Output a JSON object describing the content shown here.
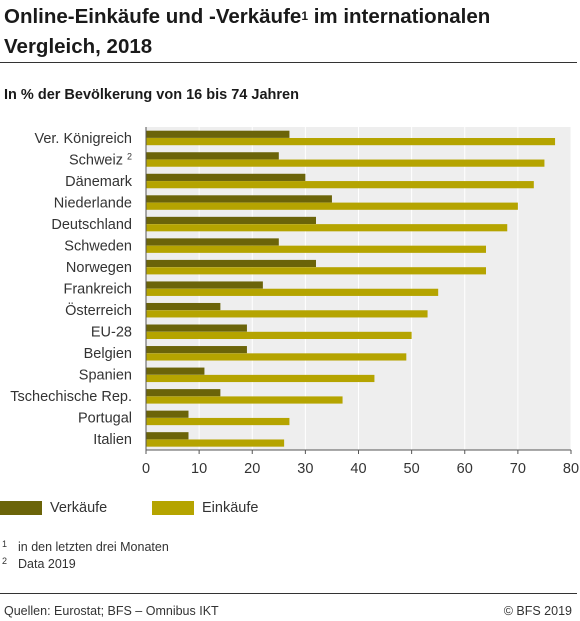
{
  "header": {
    "title_part1": "Online-Einkäufe und -Verkäufe",
    "title_sup": "1",
    "title_part2": " im internationalen Vergleich, 2018",
    "subtitle": "In % der Bevölkerung von 16 bis 74 Jahren"
  },
  "colors": {
    "verkaeufe": "#6b6409",
    "einkaeufe": "#b5a400",
    "plot_bg": "#eeeeee",
    "grid": "#ffffff"
  },
  "chart_data": {
    "type": "bar",
    "orientation": "horizontal",
    "categories": [
      "Ver. Königreich",
      "Schweiz",
      "Dänemark",
      "Niederlande",
      "Deutschland",
      "Schweden",
      "Norwegen",
      "Frankreich",
      "Österreich",
      "EU-28",
      "Belgien",
      "Spanien",
      "Tschechische Rep.",
      "Portugal",
      "Italien"
    ],
    "category_superscripts": [
      "",
      "2",
      "",
      "",
      "",
      "",
      "",
      "",
      "",
      "",
      "",
      "",
      "",
      "",
      ""
    ],
    "series": [
      {
        "name": "Verkäufe",
        "values": [
          27,
          25,
          30,
          35,
          32,
          25,
          32,
          22,
          14,
          19,
          19,
          11,
          14,
          8,
          8
        ]
      },
      {
        "name": "Einkäufe",
        "values": [
          77,
          75,
          73,
          70,
          68,
          64,
          64,
          55,
          53,
          50,
          49,
          43,
          37,
          27,
          26
        ]
      }
    ],
    "xlim": [
      0,
      80
    ],
    "xticks": [
      0,
      10,
      20,
      30,
      40,
      50,
      60,
      70,
      80
    ],
    "grid": true,
    "legend_position": "bottom-left"
  },
  "notes": [
    {
      "sup": "1",
      "text": "in den letzten drei Monaten"
    },
    {
      "sup": "2",
      "text": "Data 2019"
    }
  ],
  "footer": {
    "source": "Quellen: Eurostat; BFS – Omnibus IKT",
    "copyright": "© BFS 2019"
  }
}
